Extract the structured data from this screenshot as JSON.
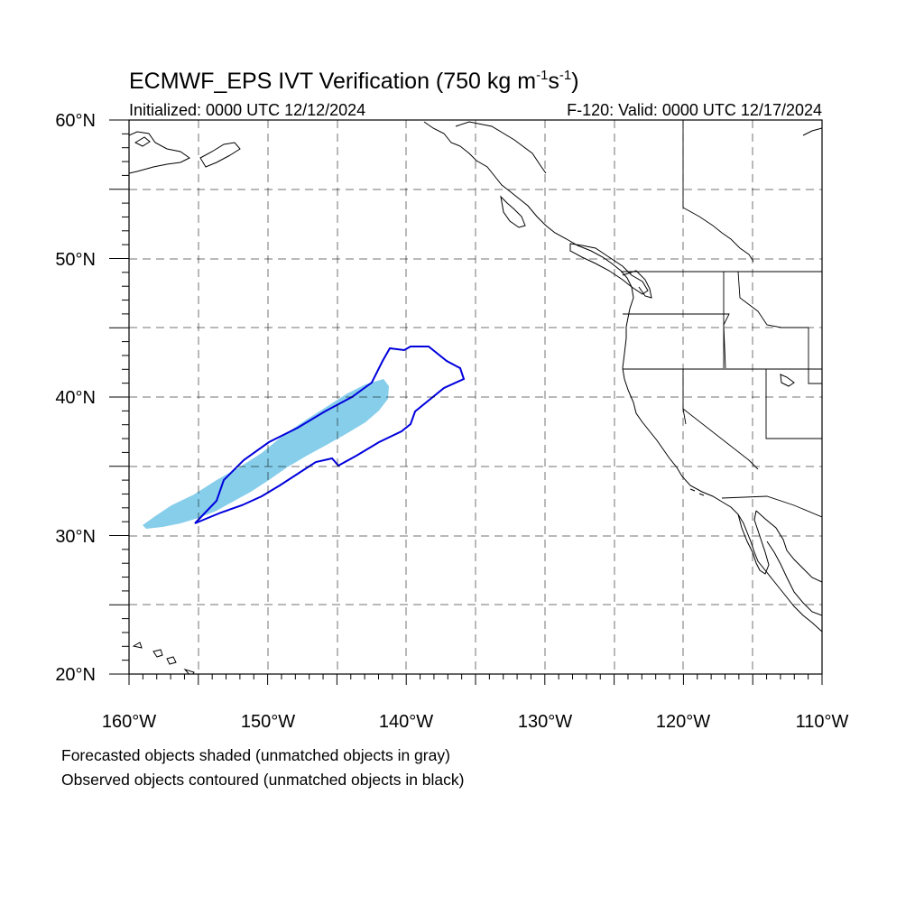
{
  "title": {
    "main": "ECMWF_EPS IVT Verification (750 kg m",
    "sup1": "-1",
    "mid": "s",
    "sup2": "-1",
    "end": ")"
  },
  "initialized": "Initialized: 0000 UTC 12/12/2024",
  "valid": "F-120: Valid: 0000 UTC 12/17/2024",
  "lat_labels": [
    "60°N",
    "50°N",
    "40°N",
    "30°N",
    "20°N"
  ],
  "lon_labels": [
    "160°W",
    "150°W",
    "140°W",
    "130°W",
    "120°W",
    "110°W"
  ],
  "footnotes": [
    "Forecasted objects shaded (unmatched objects in gray)",
    "Observed objects contoured (unmatched objects in black)"
  ],
  "colors": {
    "forecast_fill": "#87ceeb",
    "observed_contour": "#0000dd",
    "coast": "#000000"
  },
  "map": {
    "lon_range": [
      -160,
      -110
    ],
    "lat_range": [
      20,
      60
    ],
    "grid_interval_deg": 5,
    "grid_style": "dashed"
  }
}
